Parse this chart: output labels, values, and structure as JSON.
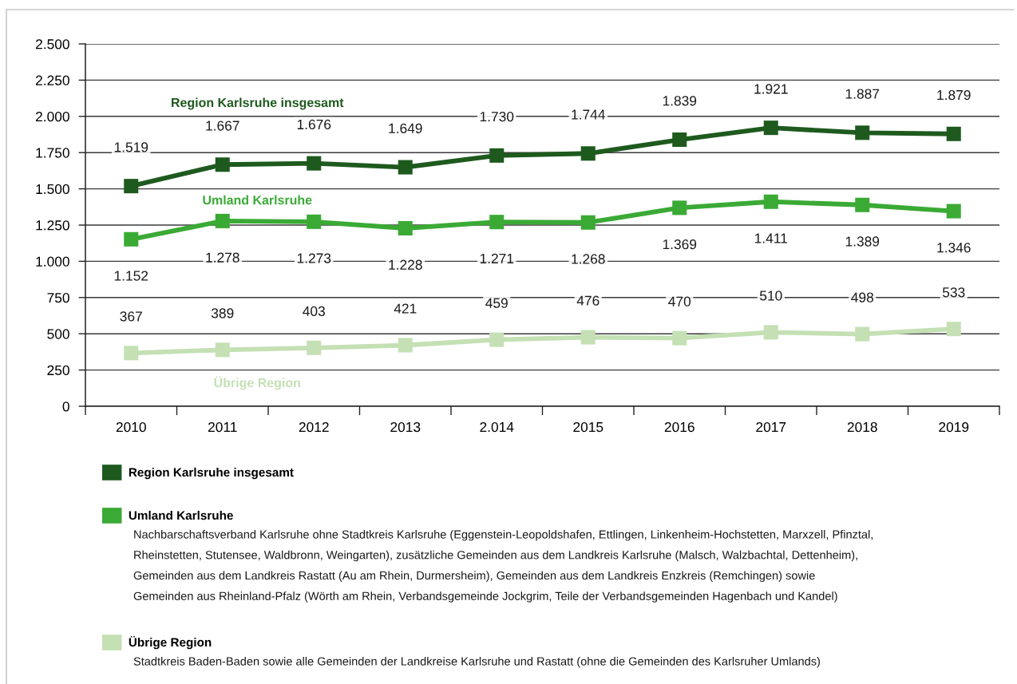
{
  "chart_data": {
    "type": "line",
    "categories": [
      "2010",
      "2011",
      "2012",
      "2013",
      "2.014",
      "2015",
      "2016",
      "2017",
      "2018",
      "2019"
    ],
    "series": [
      {
        "name": "Region Karlsruhe insgesamt",
        "color": "#1e5a1e",
        "values": [
          1519,
          1667,
          1676,
          1649,
          1730,
          1744,
          1839,
          1921,
          1887,
          1879
        ],
        "value_labels": [
          "1.519",
          "1.667",
          "1.676",
          "1.649",
          "1.730",
          "1.744",
          "1.839",
          "1.921",
          "1.887",
          "1.879"
        ]
      },
      {
        "name": "Umland Karlsruhe",
        "color": "#3aaa35",
        "values": [
          1152,
          1278,
          1273,
          1228,
          1271,
          1268,
          1369,
          1411,
          1389,
          1346
        ],
        "value_labels": [
          "1.152",
          "1.278",
          "1.273",
          "1.228",
          "1.271",
          "1.268",
          "1.369",
          "1.411",
          "1.389",
          "1.346"
        ]
      },
      {
        "name": "Übrige Region",
        "color": "#c4e0b4",
        "values": [
          367,
          389,
          403,
          421,
          459,
          476,
          470,
          510,
          498,
          533
        ],
        "value_labels": [
          "367",
          "389",
          "403",
          "421",
          "459",
          "476",
          "470",
          "510",
          "498",
          "533"
        ]
      }
    ],
    "ylim": [
      0,
      2500
    ],
    "yticks": [
      0,
      250,
      500,
      750,
      {
        "value": 1000,
        "label": "1.000"
      },
      {
        "value": 1250,
        "label": "1.250"
      },
      {
        "value": 1500,
        "label": "1.500"
      },
      {
        "value": 1750,
        "label": "1.750"
      },
      {
        "value": 2000,
        "label": "2.000"
      },
      {
        "value": 2250,
        "label": "2.250"
      },
      {
        "value": 2500,
        "label": "2.500"
      }
    ],
    "grid": "y",
    "legend": "bottom",
    "marker": "square",
    "line_style": "solid",
    "annotations": [
      "Nachbarschaftsverband Karlsruhe ohne Stadtkreis Karlsruhe (Eggenstein-Leopoldshafen, Ettlingen, Linkenheim-Hochstetten, Marxzell, Pfinztal,\nRheinstetten, Stutensee, Waldbronn, Weingarten), zusätzliche Gemeinden aus dem Landkreis Karlsruhe (Malsch, Walzbachtal, Dettenheim),\nGemeinden aus dem Landkreis Rastatt (Au am Rhein, Durmersheim), Gemeinden aus dem Landkreis Enzkreis (Remchingen) sowie\nGemeinden aus Rheinland-Pfalz (Wörth am Rhein, Verbandsgemeinde Jockgrim, Teile der Verbandsgemeinden Hagenbach und Kandel)",
      "Stadtkreis Baden-Baden sowie alle Gemeinden der Landkreise Karlsruhe und Rastatt (ohne die Gemeinden des Karlsruher Umlands)"
    ]
  }
}
